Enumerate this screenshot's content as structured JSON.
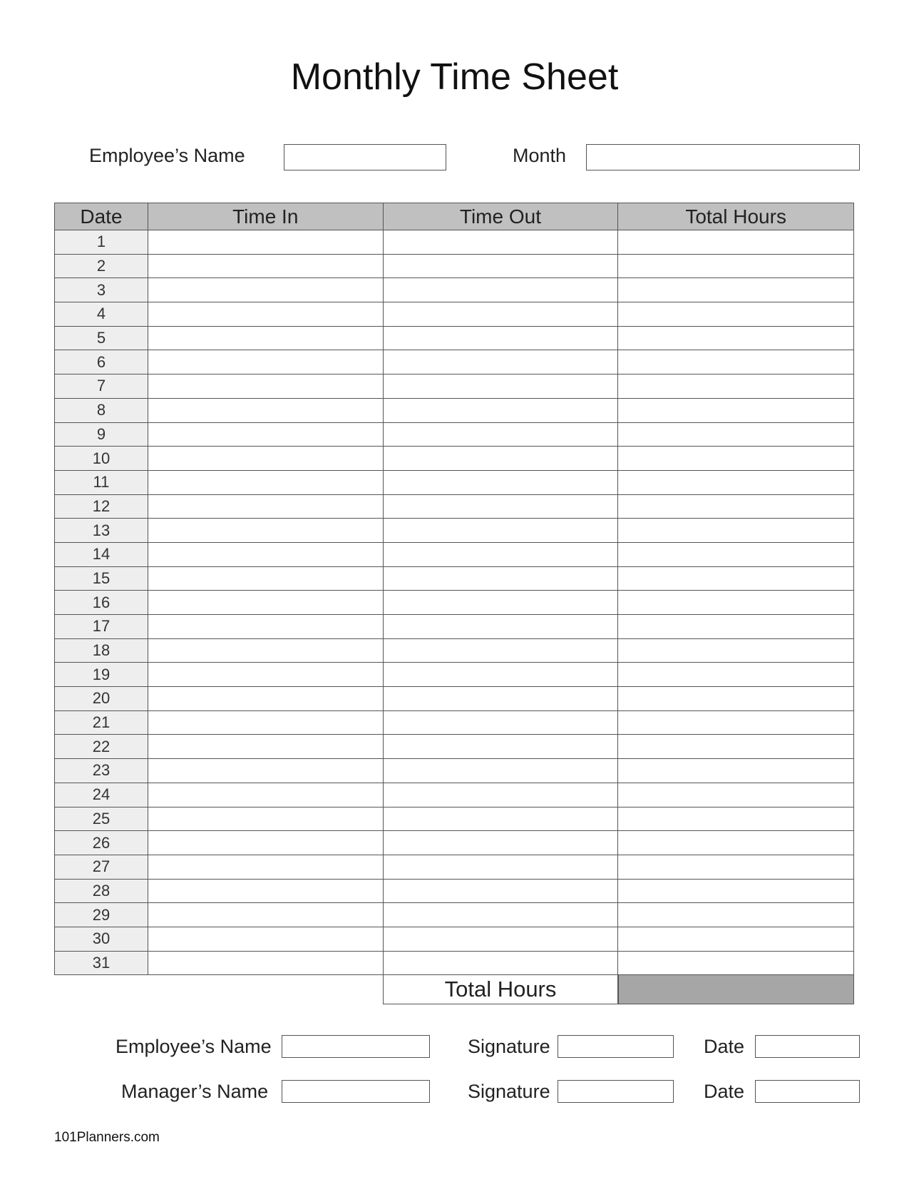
{
  "title": "Monthly Time Sheet",
  "header_fields": {
    "employee_name_label": "Employee’s Name",
    "employee_name_value": "",
    "month_label": "Month",
    "month_value": ""
  },
  "table": {
    "columns": [
      "Date",
      "Time In",
      "Time Out",
      "Total Hours"
    ],
    "rows": [
      "1",
      "2",
      "3",
      "4",
      "5",
      "6",
      "7",
      "8",
      "9",
      "10",
      "11",
      "12",
      "13",
      "14",
      "15",
      "16",
      "17",
      "18",
      "19",
      "20",
      "21",
      "22",
      "23",
      "24",
      "25",
      "26",
      "27",
      "28",
      "29",
      "30",
      "31"
    ],
    "total_label": "Total Hours",
    "total_value": ""
  },
  "signoff": {
    "employee_name_label": "Employee’s Name",
    "manager_name_label": "Manager’s Name",
    "signature_label": "Signature",
    "date_label": "Date"
  },
  "colors": {
    "header_bg": "#c0c0c0",
    "date_col_bg": "#eeeeee",
    "total_cell_bg": "#a6a6a6"
  },
  "footer": "101Planners.com"
}
